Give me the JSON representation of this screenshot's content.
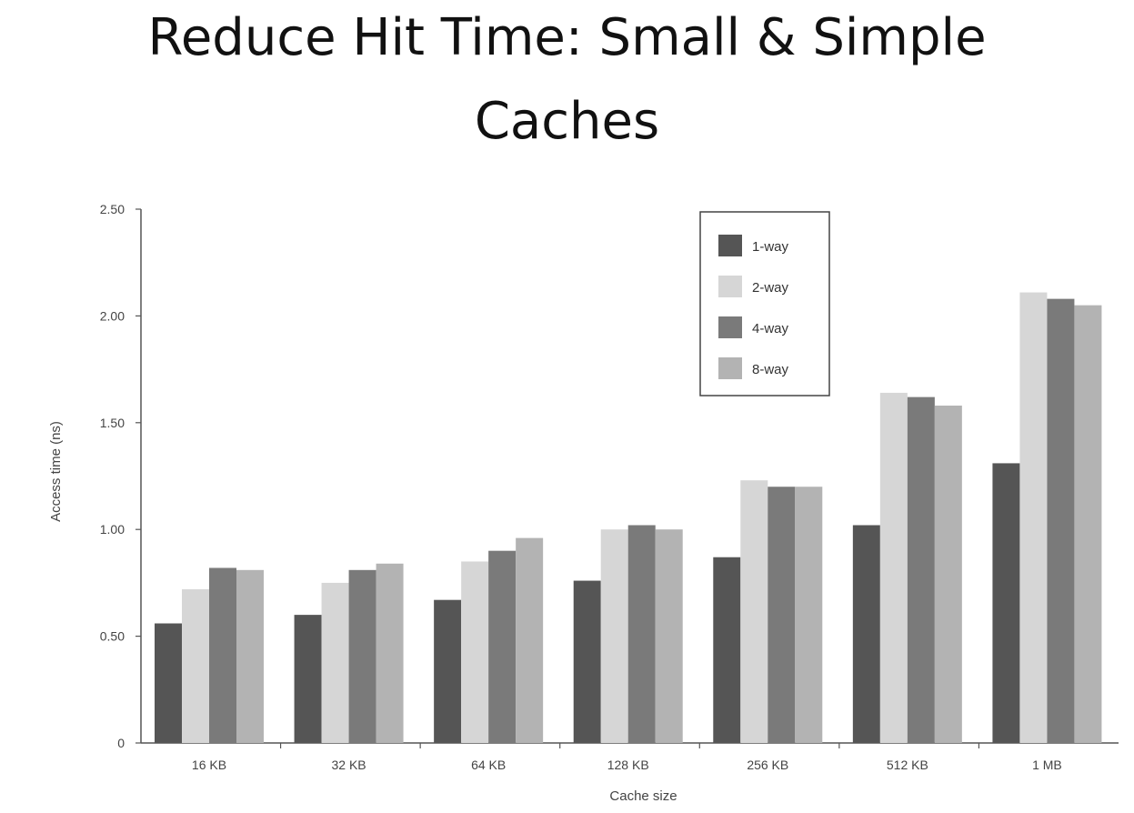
{
  "slide": {
    "title_line1": "Reduce Hit Time: Small & Simple",
    "title_line2": "Caches"
  },
  "chart_data": {
    "type": "bar",
    "xlabel": "Cache size",
    "ylabel": "Access time (ns)",
    "ylim": [
      0,
      2.5
    ],
    "yticks": [
      "0",
      "0.50",
      "1.00",
      "1.50",
      "2.00",
      "2.50"
    ],
    "ytick_values": [
      0,
      0.5,
      1.0,
      1.5,
      2.0,
      2.5
    ],
    "categories": [
      "16 KB",
      "32 KB",
      "64 KB",
      "128 KB",
      "256 KB",
      "512 KB",
      "1 MB"
    ],
    "series": [
      {
        "name": "1-way",
        "color": "#555555",
        "values": [
          0.56,
          0.6,
          0.67,
          0.76,
          0.87,
          1.02,
          1.31
        ]
      },
      {
        "name": "2-way",
        "color": "#d6d6d6",
        "values": [
          0.72,
          0.75,
          0.85,
          1.0,
          1.23,
          1.64,
          2.11
        ]
      },
      {
        "name": "4-way",
        "color": "#7a7a7a",
        "values": [
          0.82,
          0.81,
          0.9,
          1.02,
          1.2,
          1.62,
          2.08
        ]
      },
      {
        "name": "8-way",
        "color": "#b3b3b3",
        "values": [
          0.81,
          0.84,
          0.96,
          1.0,
          1.2,
          1.58,
          2.05
        ]
      }
    ],
    "legend_position": "top-right",
    "grid": false
  }
}
